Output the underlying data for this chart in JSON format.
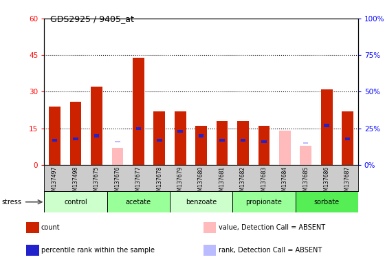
{
  "title": "GDS2925 / 9405_at",
  "samples": [
    "GSM137497",
    "GSM137498",
    "GSM137675",
    "GSM137676",
    "GSM137677",
    "GSM137678",
    "GSM137679",
    "GSM137680",
    "GSM137681",
    "GSM137682",
    "GSM137683",
    "GSM137684",
    "GSM137685",
    "GSM137686",
    "GSM137687"
  ],
  "count": [
    24,
    26,
    32,
    0,
    44,
    22,
    22,
    16,
    18,
    18,
    16,
    0,
    0,
    31,
    22
  ],
  "percentile": [
    17,
    18,
    20,
    0,
    25,
    17,
    23,
    20,
    17,
    17,
    16,
    0,
    0,
    27,
    18
  ],
  "absent_value": [
    0,
    0,
    0,
    7,
    0,
    0,
    0,
    0,
    0,
    0,
    0,
    14,
    8,
    0,
    0
  ],
  "absent_rank": [
    0,
    0,
    0,
    16,
    0,
    0,
    0,
    0,
    0,
    0,
    0,
    0,
    15,
    0,
    0
  ],
  "is_absent": [
    false,
    false,
    false,
    true,
    false,
    false,
    false,
    false,
    false,
    false,
    false,
    true,
    true,
    false,
    false
  ],
  "groups": [
    {
      "label": "control",
      "start": 0,
      "end": 3,
      "color": "#ccffcc"
    },
    {
      "label": "acetate",
      "start": 3,
      "end": 6,
      "color": "#99ff99"
    },
    {
      "label": "benzoate",
      "start": 6,
      "end": 9,
      "color": "#ccffcc"
    },
    {
      "label": "propionate",
      "start": 9,
      "end": 12,
      "color": "#99ff99"
    },
    {
      "label": "sorbate",
      "start": 12,
      "end": 15,
      "color": "#55ee55"
    }
  ],
  "ylim_left": [
    0,
    60
  ],
  "ylim_right": [
    0,
    100
  ],
  "yticks_left": [
    0,
    15,
    30,
    45,
    60
  ],
  "yticks_right": [
    0,
    25,
    50,
    75,
    100
  ],
  "bar_width": 0.55,
  "count_color": "#cc2200",
  "percentile_color": "#2222cc",
  "absent_value_color": "#ffbbbb",
  "absent_rank_color": "#bbbbff",
  "plot_bg_color": "#ffffff",
  "xtick_bg_color": "#cccccc",
  "legend_items": [
    {
      "label": "count",
      "color": "#cc2200"
    },
    {
      "label": "percentile rank within the sample",
      "color": "#2222cc"
    },
    {
      "label": "value, Detection Call = ABSENT",
      "color": "#ffbbbb"
    },
    {
      "label": "rank, Detection Call = ABSENT",
      "color": "#bbbbff"
    }
  ]
}
